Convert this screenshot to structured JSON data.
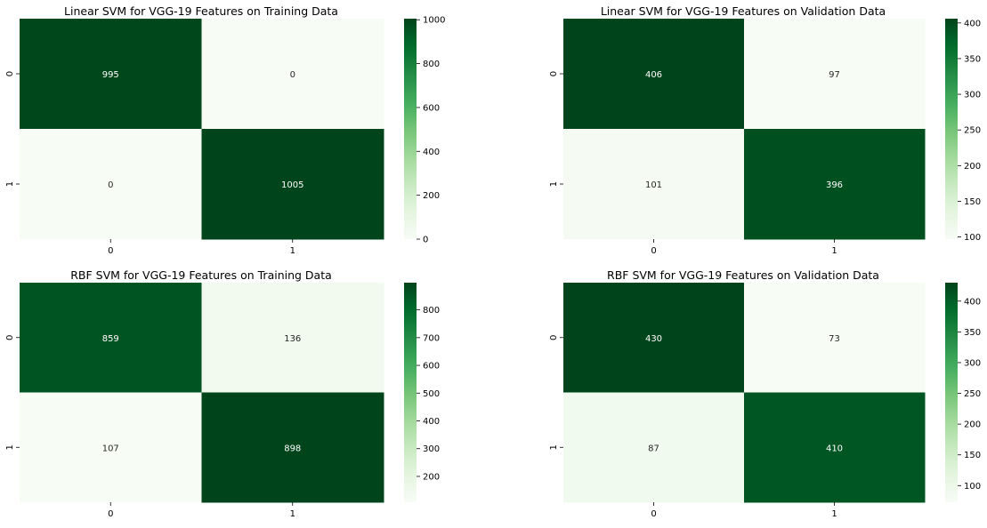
{
  "chart_data": [
    {
      "type": "heatmap",
      "title": "Linear SVM for VGG-19 Features on Training Data",
      "x_categories": [
        "0",
        "1"
      ],
      "y_categories": [
        "0",
        "1"
      ],
      "values": [
        [
          995,
          0
        ],
        [
          0,
          1005
        ]
      ],
      "cell_labels": [
        [
          "995",
          "0"
        ],
        [
          "0",
          "1005"
        ]
      ],
      "colormap": "Greens",
      "colorbar": {
        "min": 0,
        "max": 1005,
        "ticks": [
          0,
          200,
          400,
          600,
          800,
          1000
        ]
      }
    },
    {
      "type": "heatmap",
      "title": "Linear SVM for VGG-19 Features on Validation Data",
      "x_categories": [
        "0",
        "1"
      ],
      "y_categories": [
        "0",
        "1"
      ],
      "values": [
        [
          406,
          97
        ],
        [
          101,
          396
        ]
      ],
      "cell_labels": [
        [
          "406",
          "97"
        ],
        [
          "101",
          "396"
        ]
      ],
      "colormap": "Greens",
      "colorbar": {
        "min": 97,
        "max": 406,
        "ticks": [
          100,
          150,
          200,
          250,
          300,
          350,
          400
        ]
      }
    },
    {
      "type": "heatmap",
      "title": "RBF SVM for VGG-19 Features on Training Data",
      "x_categories": [
        "0",
        "1"
      ],
      "y_categories": [
        "0",
        "1"
      ],
      "values": [
        [
          859,
          136
        ],
        [
          107,
          898
        ]
      ],
      "cell_labels": [
        [
          "859",
          "136"
        ],
        [
          "107",
          "898"
        ]
      ],
      "colormap": "Greens",
      "colorbar": {
        "min": 107,
        "max": 898,
        "ticks": [
          200,
          300,
          400,
          500,
          600,
          700,
          800
        ]
      }
    },
    {
      "type": "heatmap",
      "title": "RBF SVM for VGG-19 Features on Validation Data",
      "x_categories": [
        "0",
        "1"
      ],
      "y_categories": [
        "0",
        "1"
      ],
      "values": [
        [
          430,
          73
        ],
        [
          87,
          410
        ]
      ],
      "cell_labels": [
        [
          "430",
          "73"
        ],
        [
          "87",
          "410"
        ]
      ],
      "colormap": "Greens",
      "colorbar": {
        "min": 73,
        "max": 430,
        "ticks": [
          100,
          150,
          200,
          250,
          300,
          350,
          400
        ]
      }
    }
  ]
}
